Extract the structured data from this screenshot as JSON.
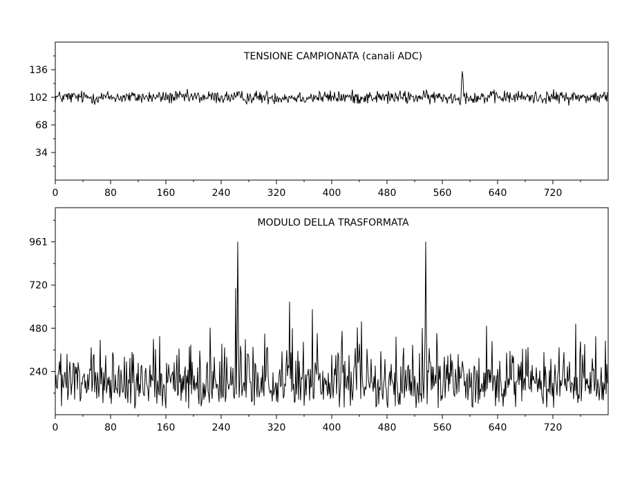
{
  "chart_data": [
    {
      "type": "line",
      "title": "TENSIONE CAMPIONATA (canali ADC)",
      "xlim": [
        0,
        800
      ],
      "ylim": [
        0,
        170
      ],
      "x_ticks": [
        0,
        80,
        160,
        240,
        320,
        400,
        480,
        560,
        640,
        720
      ],
      "y_ticks": [
        34,
        68,
        102,
        136
      ],
      "y_minor_ticks": [
        17,
        51,
        85,
        119,
        153
      ],
      "x_minor_ticks": [
        40,
        120,
        200,
        280,
        360,
        440,
        520,
        600,
        680,
        760
      ],
      "n_samples": 800,
      "baseline": 102,
      "noise_amplitude": 11,
      "peaks": [
        {
          "x": 589,
          "y": 134
        }
      ],
      "min_value": 82,
      "max_value": 134
    },
    {
      "type": "line",
      "title": "MODULO DELLA TRASFORMATA",
      "xlim": [
        0,
        800
      ],
      "ylim": [
        0,
        1150
      ],
      "x_ticks": [
        0,
        80,
        160,
        240,
        320,
        400,
        480,
        560,
        640,
        720
      ],
      "y_ticks": [
        240,
        480,
        720,
        961
      ],
      "y_minor_ticks": [
        120,
        360,
        600,
        840,
        1080
      ],
      "x_minor_ticks": [
        40,
        120,
        200,
        280,
        360,
        440,
        520,
        600,
        680,
        760
      ],
      "n_samples": 800,
      "baseline": 230,
      "noise_amplitude": 130,
      "peaks": [
        {
          "x": 264,
          "y": 961
        },
        {
          "x": 536,
          "y": 961
        }
      ],
      "min_value": 0,
      "max_value": 961
    }
  ]
}
